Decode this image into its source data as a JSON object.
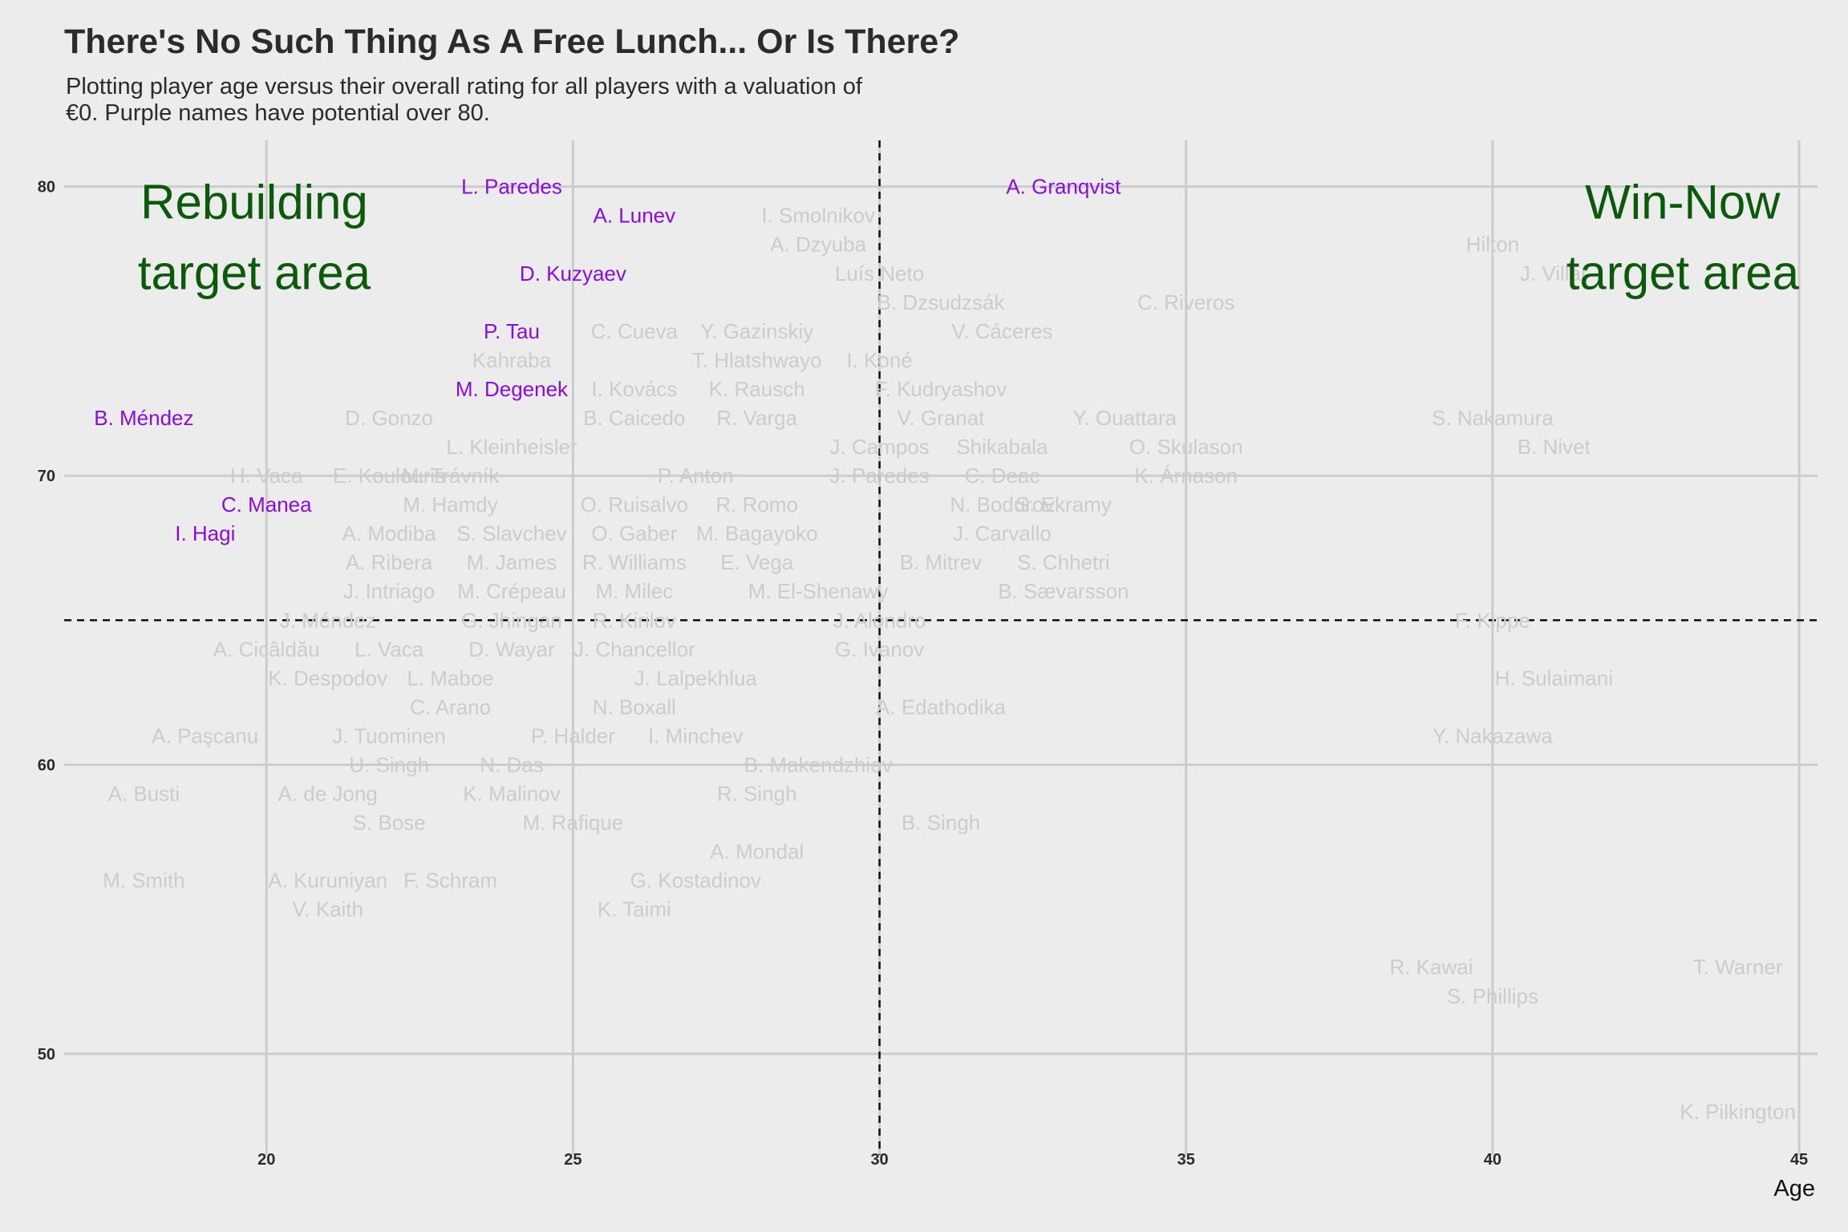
{
  "title": "There's No Such Thing As A Free Lunch... Or Is There?",
  "subtitle": "Plotting player age versus their overall rating for all players with a valuation of €0. Purple names have potential over 80.",
  "chart_data": {
    "type": "scatter",
    "xlabel": "Age",
    "ylabel": "",
    "xlim": [
      16.7,
      45.3
    ],
    "ylim": [
      46.5,
      81.6
    ],
    "x_ticks": [
      20,
      25,
      30,
      35,
      40,
      45
    ],
    "y_ticks": [
      50,
      60,
      70,
      80
    ],
    "reference_lines": {
      "x": 30,
      "y": 65
    },
    "grid": true,
    "colors": {
      "high_potential": "#8A0BE0",
      "other": "#cccccc",
      "annotation": "#0a5a0a",
      "background": "#ececec"
    },
    "annotations": [
      {
        "lines": [
          "Rebuilding",
          "target area"
        ],
        "x": 19.8,
        "y": 78.9
      },
      {
        "lines": [
          "Win-Now",
          "target area"
        ],
        "x": 43.1,
        "y": 78.9
      }
    ],
    "points": [
      {
        "name": "L. Paredes",
        "age": 24,
        "overall": 80,
        "high_potential": true
      },
      {
        "name": "A. Granqvist",
        "age": 33,
        "overall": 80,
        "high_potential": true
      },
      {
        "name": "A. Lunev",
        "age": 26,
        "overall": 79,
        "high_potential": true
      },
      {
        "name": "I. Smolnikov",
        "age": 29,
        "overall": 79,
        "high_potential": false
      },
      {
        "name": "A. Dzyuba",
        "age": 29,
        "overall": 78,
        "high_potential": false
      },
      {
        "name": "Hilton",
        "age": 40,
        "overall": 78,
        "high_potential": false
      },
      {
        "name": "D. Kuzyaev",
        "age": 25,
        "overall": 77,
        "high_potential": true
      },
      {
        "name": "Luís Neto",
        "age": 30,
        "overall": 77,
        "high_potential": false
      },
      {
        "name": "J. Villar",
        "age": 41,
        "overall": 77,
        "high_potential": false
      },
      {
        "name": "B. Dzsudzsák",
        "age": 31,
        "overall": 76,
        "high_potential": false
      },
      {
        "name": "C. Riveros",
        "age": 35,
        "overall": 76,
        "high_potential": false
      },
      {
        "name": "P. Tau",
        "age": 24,
        "overall": 75,
        "high_potential": true
      },
      {
        "name": "C. Cueva",
        "age": 26,
        "overall": 75,
        "high_potential": false
      },
      {
        "name": "Y. Gazinskiy",
        "age": 28,
        "overall": 75,
        "high_potential": false
      },
      {
        "name": "V. Cáceres",
        "age": 32,
        "overall": 75,
        "high_potential": false
      },
      {
        "name": "Kahraba",
        "age": 24,
        "overall": 74,
        "high_potential": false
      },
      {
        "name": "T. Hlatshwayo",
        "age": 28,
        "overall": 74,
        "high_potential": false
      },
      {
        "name": "I. Koné",
        "age": 30,
        "overall": 74,
        "high_potential": false
      },
      {
        "name": "M. Degenek",
        "age": 24,
        "overall": 73,
        "high_potential": true
      },
      {
        "name": "I. Kovács",
        "age": 26,
        "overall": 73,
        "high_potential": false
      },
      {
        "name": "K. Rausch",
        "age": 28,
        "overall": 73,
        "high_potential": false
      },
      {
        "name": "F. Kudryashov",
        "age": 31,
        "overall": 73,
        "high_potential": false
      },
      {
        "name": "B. Méndez",
        "age": 18,
        "overall": 72,
        "high_potential": true
      },
      {
        "name": "D. Gonzo",
        "age": 22,
        "overall": 72,
        "high_potential": false
      },
      {
        "name": "B. Caicedo",
        "age": 26,
        "overall": 72,
        "high_potential": false
      },
      {
        "name": "R. Varga",
        "age": 28,
        "overall": 72,
        "high_potential": false
      },
      {
        "name": "V. Granat",
        "age": 31,
        "overall": 72,
        "high_potential": false
      },
      {
        "name": "Y. Ouattara",
        "age": 34,
        "overall": 72,
        "high_potential": false
      },
      {
        "name": "S. Nakamura",
        "age": 40,
        "overall": 72,
        "high_potential": false
      },
      {
        "name": "L. Kleinheisler",
        "age": 24,
        "overall": 71,
        "high_potential": false
      },
      {
        "name": "J. Campos",
        "age": 30,
        "overall": 71,
        "high_potential": false
      },
      {
        "name": "Shikabala",
        "age": 32,
        "overall": 71,
        "high_potential": false
      },
      {
        "name": "O. Skulason",
        "age": 35,
        "overall": 71,
        "high_potential": false
      },
      {
        "name": "B. Nivet",
        "age": 41,
        "overall": 71,
        "high_potential": false
      },
      {
        "name": "H. Vaca",
        "age": 20,
        "overall": 70,
        "high_potential": false
      },
      {
        "name": "E. Koulouris",
        "age": 22,
        "overall": 70,
        "high_potential": false
      },
      {
        "name": "M. Trávník",
        "age": 23,
        "overall": 70,
        "high_potential": false
      },
      {
        "name": "P. Anton",
        "age": 27,
        "overall": 70,
        "high_potential": false
      },
      {
        "name": "J. Paredes",
        "age": 30,
        "overall": 70,
        "high_potential": false
      },
      {
        "name": "C. Deac",
        "age": 32,
        "overall": 70,
        "high_potential": false
      },
      {
        "name": "K. Árnason",
        "age": 35,
        "overall": 70,
        "high_potential": false
      },
      {
        "name": "C. Manea",
        "age": 20,
        "overall": 69,
        "high_potential": true
      },
      {
        "name": "M. Hamdy",
        "age": 23,
        "overall": 69,
        "high_potential": false
      },
      {
        "name": "O. Ruisalvo",
        "age": 26,
        "overall": 69,
        "high_potential": false
      },
      {
        "name": "R. Romo",
        "age": 28,
        "overall": 69,
        "high_potential": false
      },
      {
        "name": "N. Bodurov",
        "age": 32,
        "overall": 69,
        "high_potential": false
      },
      {
        "name": "S. Ekramy",
        "age": 33,
        "overall": 69,
        "high_potential": false
      },
      {
        "name": "I. Hagi",
        "age": 19,
        "overall": 68,
        "high_potential": true
      },
      {
        "name": "A. Modiba",
        "age": 22,
        "overall": 68,
        "high_potential": false
      },
      {
        "name": "S. Slavchev",
        "age": 24,
        "overall": 68,
        "high_potential": false
      },
      {
        "name": "O. Gaber",
        "age": 26,
        "overall": 68,
        "high_potential": false
      },
      {
        "name": "M. Bagayoko",
        "age": 28,
        "overall": 68,
        "high_potential": false
      },
      {
        "name": "J. Carvallo",
        "age": 32,
        "overall": 68,
        "high_potential": false
      },
      {
        "name": "A. Ribera",
        "age": 22,
        "overall": 67,
        "high_potential": false
      },
      {
        "name": "M. James",
        "age": 24,
        "overall": 67,
        "high_potential": false
      },
      {
        "name": "R. Williams",
        "age": 26,
        "overall": 67,
        "high_potential": false
      },
      {
        "name": "E. Vega",
        "age": 28,
        "overall": 67,
        "high_potential": false
      },
      {
        "name": "B. Mitrev",
        "age": 31,
        "overall": 67,
        "high_potential": false
      },
      {
        "name": "S. Chhetri",
        "age": 33,
        "overall": 67,
        "high_potential": false
      },
      {
        "name": "J. Intriago",
        "age": 22,
        "overall": 66,
        "high_potential": false
      },
      {
        "name": "M. Crépeau",
        "age": 24,
        "overall": 66,
        "high_potential": false
      },
      {
        "name": "M. Milec",
        "age": 26,
        "overall": 66,
        "high_potential": false
      },
      {
        "name": "M. El-Shenawy",
        "age": 29,
        "overall": 66,
        "high_potential": false
      },
      {
        "name": "B. Sævarsson",
        "age": 33,
        "overall": 66,
        "high_potential": false
      },
      {
        "name": "J. Méndez",
        "age": 21,
        "overall": 65,
        "high_potential": false
      },
      {
        "name": "G. Jhingan",
        "age": 24,
        "overall": 65,
        "high_potential": false
      },
      {
        "name": "R. Kirilov",
        "age": 26,
        "overall": 65,
        "high_potential": false
      },
      {
        "name": "J. Alondro",
        "age": 30,
        "overall": 65,
        "high_potential": false
      },
      {
        "name": "F. Kippe",
        "age": 40,
        "overall": 65,
        "high_potential": false
      },
      {
        "name": "A. Cicâldău",
        "age": 20,
        "overall": 64,
        "high_potential": false
      },
      {
        "name": "L. Vaca",
        "age": 22,
        "overall": 64,
        "high_potential": false
      },
      {
        "name": "D. Wayar",
        "age": 24,
        "overall": 64,
        "high_potential": false
      },
      {
        "name": "J. Chancellor",
        "age": 26,
        "overall": 64,
        "high_potential": false
      },
      {
        "name": "G. Ivanov",
        "age": 30,
        "overall": 64,
        "high_potential": false
      },
      {
        "name": "K. Despodov",
        "age": 21,
        "overall": 63,
        "high_potential": false
      },
      {
        "name": "L. Maboe",
        "age": 23,
        "overall": 63,
        "high_potential": false
      },
      {
        "name": "J. Lalpekhlua",
        "age": 27,
        "overall": 63,
        "high_potential": false
      },
      {
        "name": "H. Sulaimani",
        "age": 41,
        "overall": 63,
        "high_potential": false
      },
      {
        "name": "C. Arano",
        "age": 23,
        "overall": 62,
        "high_potential": false
      },
      {
        "name": "N. Boxall",
        "age": 26,
        "overall": 62,
        "high_potential": false
      },
      {
        "name": "A. Edathodika",
        "age": 31,
        "overall": 62,
        "high_potential": false
      },
      {
        "name": "A. Paşcanu",
        "age": 19,
        "overall": 61,
        "high_potential": false
      },
      {
        "name": "J. Tuominen",
        "age": 22,
        "overall": 61,
        "high_potential": false
      },
      {
        "name": "P. Halder",
        "age": 25,
        "overall": 61,
        "high_potential": false
      },
      {
        "name": "I. Minchev",
        "age": 27,
        "overall": 61,
        "high_potential": false
      },
      {
        "name": "Y. Nakazawa",
        "age": 40,
        "overall": 61,
        "high_potential": false
      },
      {
        "name": "U. Singh",
        "age": 22,
        "overall": 60,
        "high_potential": false
      },
      {
        "name": "N. Das",
        "age": 24,
        "overall": 60,
        "high_potential": false
      },
      {
        "name": "B. Makendzhiev",
        "age": 29,
        "overall": 60,
        "high_potential": false
      },
      {
        "name": "A. Busti",
        "age": 18,
        "overall": 59,
        "high_potential": false
      },
      {
        "name": "A. de Jong",
        "age": 21,
        "overall": 59,
        "high_potential": false
      },
      {
        "name": "K. Malinov",
        "age": 24,
        "overall": 59,
        "high_potential": false
      },
      {
        "name": "R. Singh",
        "age": 28,
        "overall": 59,
        "high_potential": false
      },
      {
        "name": "S. Bose",
        "age": 22,
        "overall": 58,
        "high_potential": false
      },
      {
        "name": "M. Rafique",
        "age": 25,
        "overall": 58,
        "high_potential": false
      },
      {
        "name": "B. Singh",
        "age": 31,
        "overall": 58,
        "high_potential": false
      },
      {
        "name": "A. Mondal",
        "age": 28,
        "overall": 57,
        "high_potential": false
      },
      {
        "name": "M. Smith",
        "age": 18,
        "overall": 56,
        "high_potential": false
      },
      {
        "name": "A. Kuruniyan",
        "age": 21,
        "overall": 56,
        "high_potential": false
      },
      {
        "name": "F. Schram",
        "age": 23,
        "overall": 56,
        "high_potential": false
      },
      {
        "name": "G. Kostadinov",
        "age": 27,
        "overall": 56,
        "high_potential": false
      },
      {
        "name": "V. Kaith",
        "age": 21,
        "overall": 55,
        "high_potential": false
      },
      {
        "name": "K. Taimi",
        "age": 26,
        "overall": 55,
        "high_potential": false
      },
      {
        "name": "R. Kawai",
        "age": 39,
        "overall": 53,
        "high_potential": false
      },
      {
        "name": "T. Warner",
        "age": 44,
        "overall": 53,
        "high_potential": false
      },
      {
        "name": "S. Phillips",
        "age": 40,
        "overall": 52,
        "high_potential": false
      },
      {
        "name": "K. Pilkington",
        "age": 44,
        "overall": 48,
        "high_potential": false
      }
    ]
  }
}
